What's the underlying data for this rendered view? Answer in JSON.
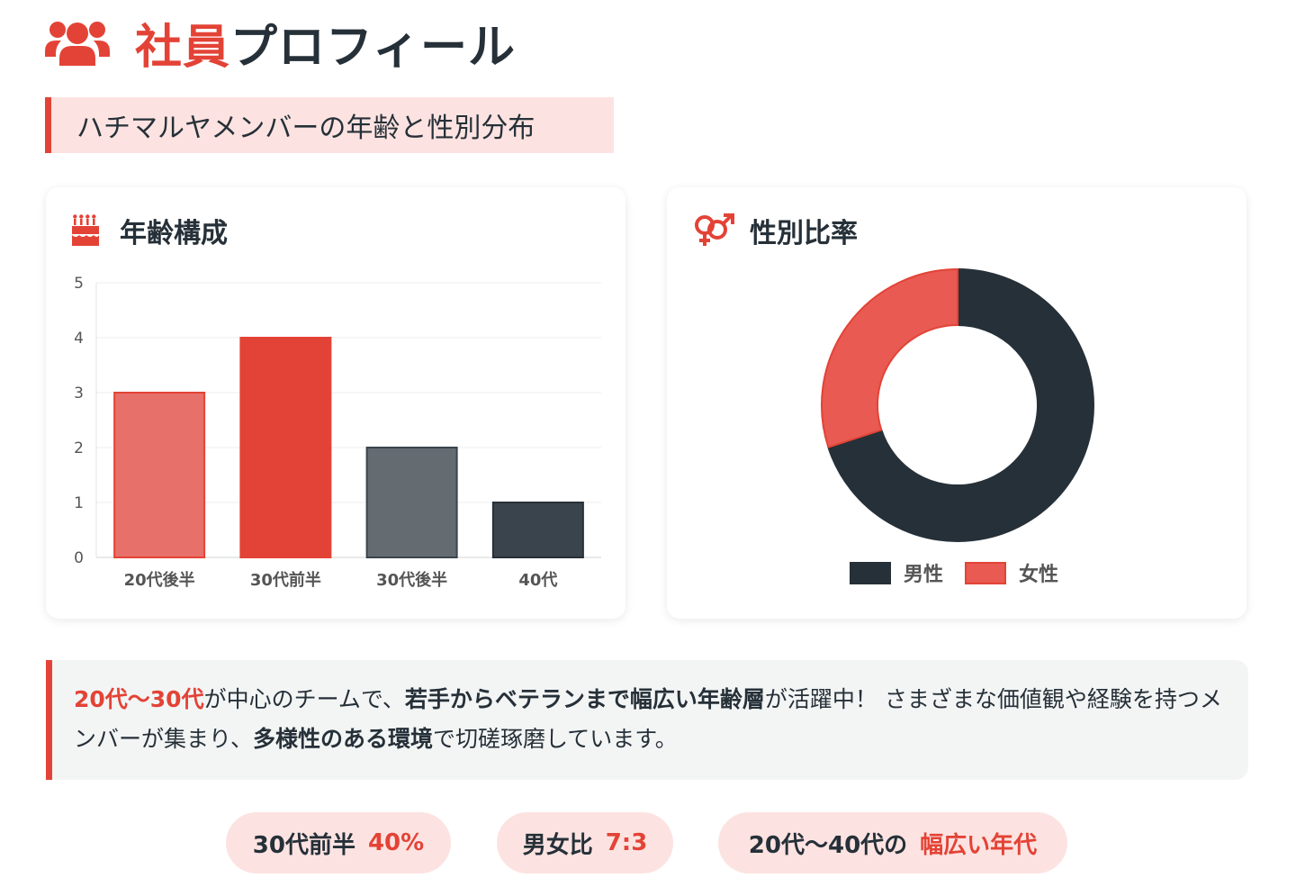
{
  "header": {
    "title_accent": "社員",
    "title_rest": "プロフィール",
    "subtitle": "ハチマルヤメンバーの年齢と性別分布"
  },
  "age_card": {
    "title": "年齢構成"
  },
  "gender_card": {
    "title": "性別比率"
  },
  "colors": {
    "accent": "#e34336",
    "dark": "#263038",
    "bar_20s_late": "#e8706a",
    "bar_30s_early": "#e34336",
    "bar_30s_late": "#646c72",
    "bar_40s": "#3a444c",
    "male": "#263038",
    "female": "#e85a52"
  },
  "chart_data": [
    {
      "type": "bar",
      "title": "年齢構成",
      "categories": [
        "20代後半",
        "30代前半",
        "30代後半",
        "40代"
      ],
      "values": [
        3,
        4,
        2,
        1
      ],
      "ylim": [
        0,
        5
      ],
      "yticks": [
        0,
        1,
        2,
        3,
        4,
        5
      ],
      "xlabel": "",
      "ylabel": "",
      "grid": true
    },
    {
      "type": "pie",
      "variant": "doughnut",
      "title": "性別比率",
      "labels": [
        "男性",
        "女性"
      ],
      "values": [
        7,
        3
      ],
      "legend": "bottom"
    }
  ],
  "note": {
    "s1": "20代〜30代",
    "s2": "が中心のチームで、",
    "s3": "若手からベテランまで幅広い年齢層",
    "s4": "が活躍中！ さまざまな価値観や経験を持つメンバーが集まり、",
    "s5": "多様性のある環境",
    "s6": "で切磋琢磨しています。"
  },
  "pills": [
    {
      "label": "30代前半",
      "value": "40%"
    },
    {
      "label": "男女比",
      "value": "7:3"
    },
    {
      "label": "20代〜40代の",
      "value": "幅広い年代"
    }
  ]
}
